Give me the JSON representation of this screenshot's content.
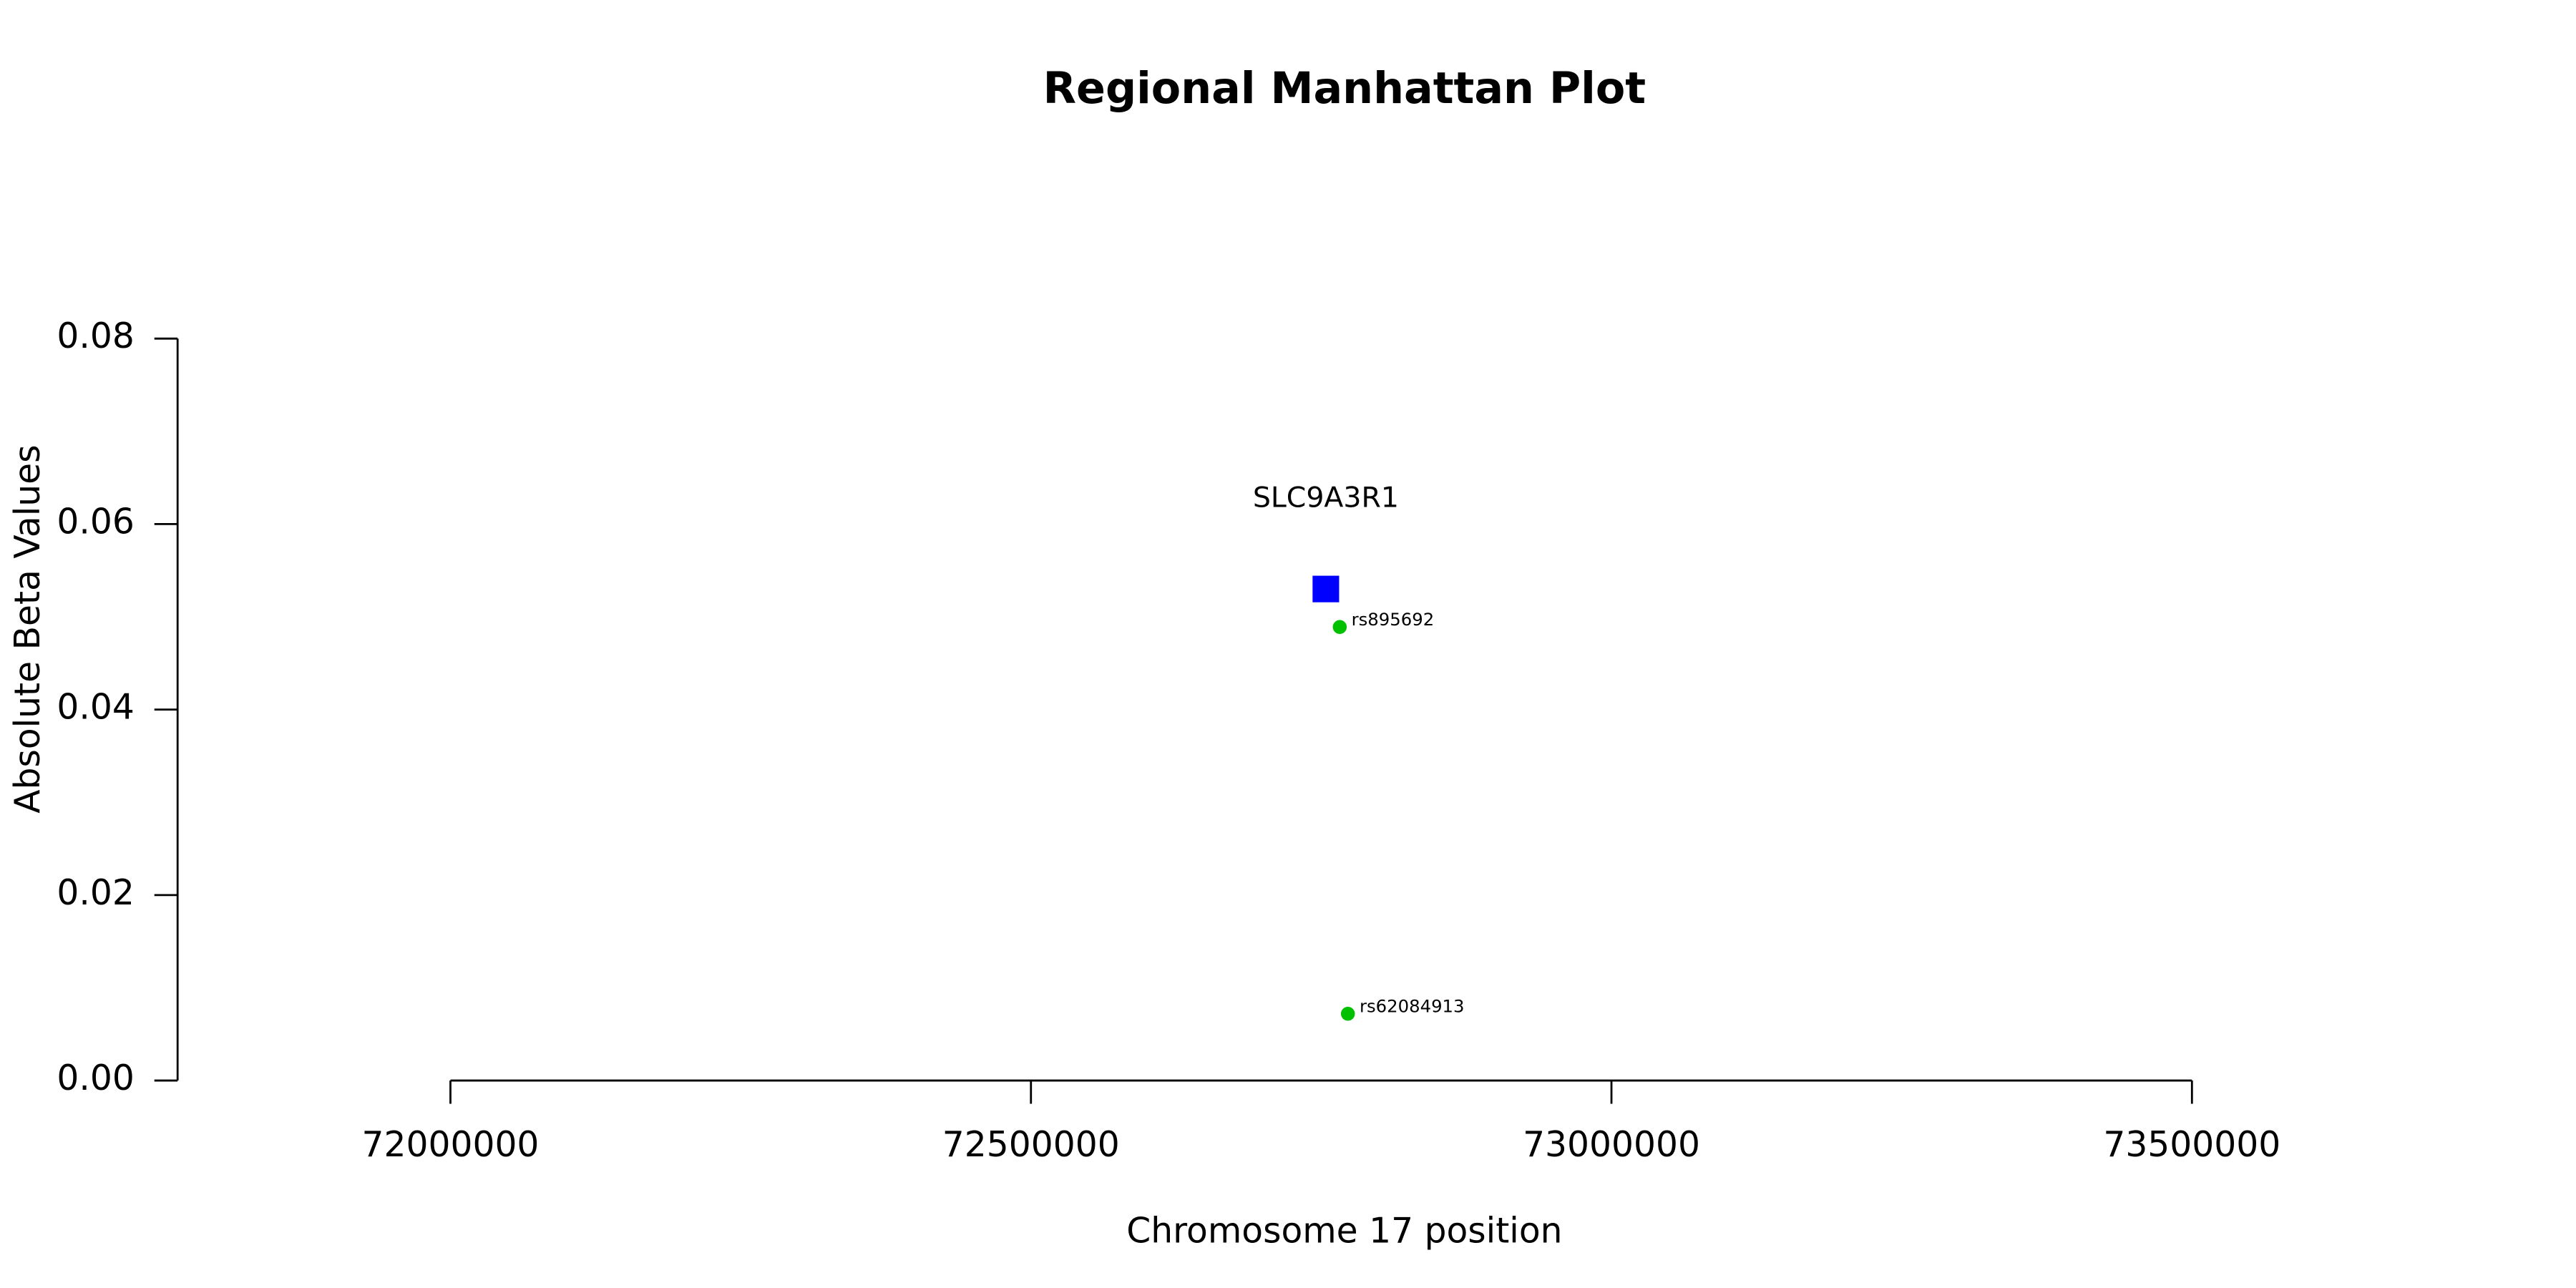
{
  "chart_data": {
    "type": "scatter",
    "title": "Regional Manhattan Plot",
    "x_label": "Chromosome 17 position",
    "y_label": "Absolute Beta Values",
    "xlim": [
      71765000,
      73735000
    ],
    "xticks": [
      72000000,
      72500000,
      73000000,
      73500000
    ],
    "ylim": [
      0,
      0.08
    ],
    "yticks": [
      {
        "value": 0,
        "label": "0.00"
      },
      0.02,
      0.04,
      0.06,
      0.08
    ],
    "grid": false,
    "series": [
      {
        "marker": "square",
        "color": "#0000ff",
        "label_position": "above",
        "x": [
          72754000
        ],
        "values": [
          0.053
        ],
        "point_labels": [
          "SLC9A3R1"
        ]
      },
      {
        "marker": "circle",
        "color": "#00c000",
        "label_position": "right",
        "x": [
          72766000,
          72773000
        ],
        "values": [
          0.0489,
          0.0072
        ],
        "point_labels": [
          "rs895692",
          "rs62084913"
        ]
      }
    ]
  }
}
